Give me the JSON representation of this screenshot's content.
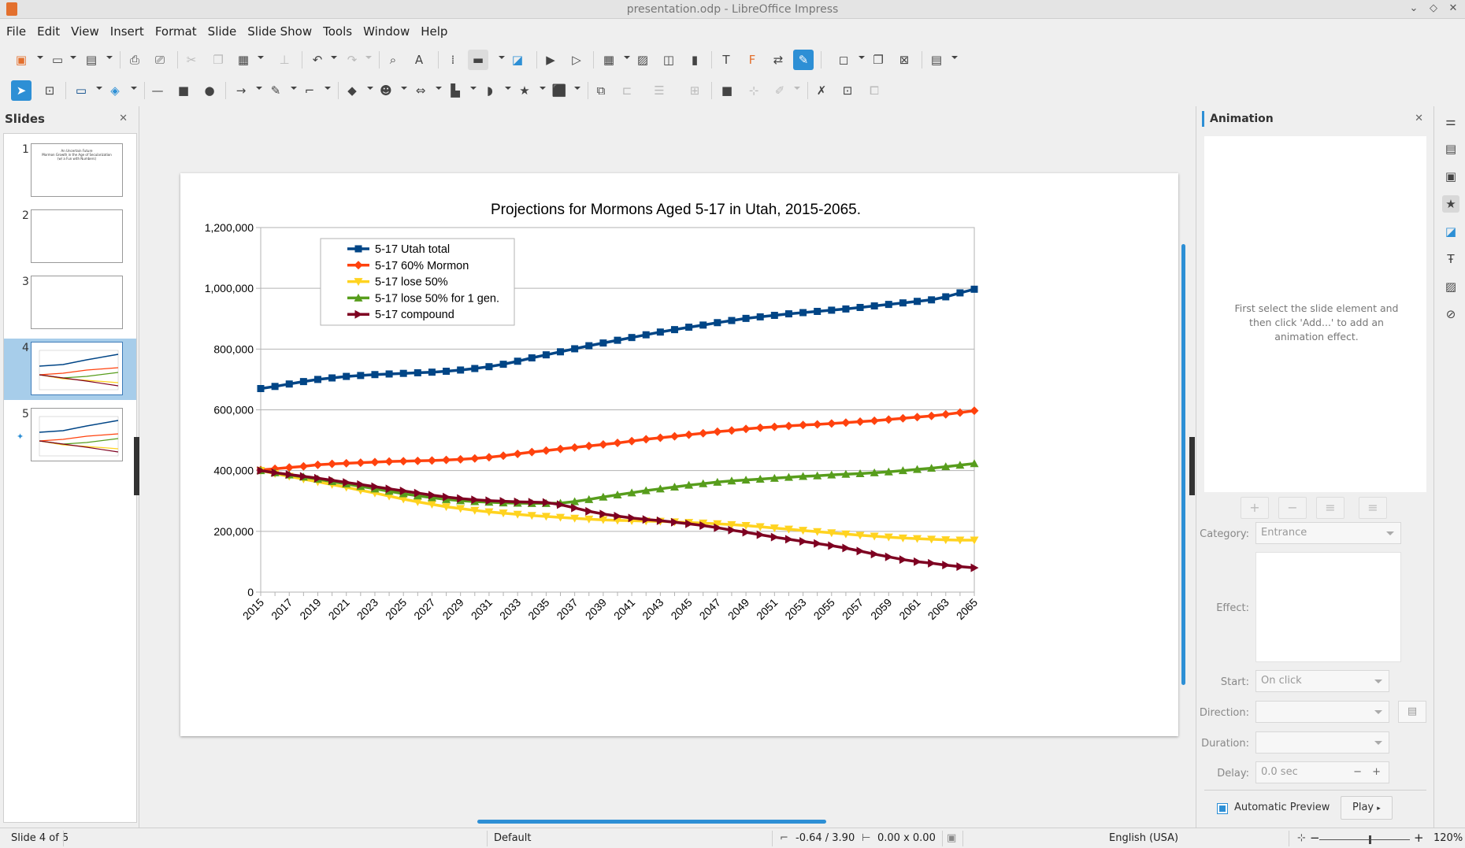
{
  "window": {
    "title": "presentation.odp - LibreOffice Impress"
  },
  "menu": [
    "File",
    "Edit",
    "View",
    "Insert",
    "Format",
    "Slide",
    "Slide Show",
    "Tools",
    "Window",
    "Help"
  ],
  "slides_panel": {
    "title": "Slides",
    "thumbs": [
      {
        "num": "1",
        "lines": [
          "An Uncertain Future",
          "Mormon Growth in the Age of Secularization",
          "(w/ a Fun with Numbers)"
        ]
      },
      {
        "num": "2"
      },
      {
        "num": "3"
      },
      {
        "num": "4"
      },
      {
        "num": "5"
      }
    ]
  },
  "animation_panel": {
    "title": "Animation",
    "hint": "First select the slide element and then click 'Add...' to add an animation effect.",
    "category_label": "Category:",
    "category_value": "Entrance",
    "effect_label": "Effect:",
    "start_label": "Start:",
    "start_value": "On click",
    "direction_label": "Direction:",
    "duration_label": "Duration:",
    "delay_label": "Delay:",
    "delay_value": "0.0 sec",
    "auto_preview_label": "Automatic Preview",
    "play_label": "Play"
  },
  "status": {
    "slide": "Slide 4 of 5",
    "layout": "Default",
    "position": "-0.64 / 3.90",
    "size": "0.00 x 0.00",
    "language": "English (USA)",
    "zoom": "120%"
  },
  "chart_data": {
    "type": "line",
    "title": "Projections for Mormons Aged 5-17 in Utah, 2015-2065.",
    "x": [
      2015,
      2016,
      2017,
      2018,
      2019,
      2020,
      2021,
      2022,
      2023,
      2024,
      2025,
      2026,
      2027,
      2028,
      2029,
      2030,
      2031,
      2032,
      2033,
      2034,
      2035,
      2036,
      2037,
      2038,
      2039,
      2040,
      2041,
      2042,
      2043,
      2044,
      2045,
      2046,
      2047,
      2048,
      2049,
      2050,
      2051,
      2052,
      2053,
      2054,
      2055,
      2056,
      2057,
      2058,
      2059,
      2060,
      2061,
      2062,
      2063,
      2064,
      2065
    ],
    "xticks": [
      "2015",
      "2017",
      "2019",
      "2021",
      "2023",
      "2025",
      "2027",
      "2029",
      "2031",
      "2033",
      "2035",
      "2037",
      "2039",
      "2041",
      "2043",
      "2045",
      "2047",
      "2049",
      "2051",
      "2053",
      "2055",
      "2057",
      "2059",
      "2061",
      "2063",
      "2065"
    ],
    "yticks": [
      "0",
      "200,000",
      "400,000",
      "600,000",
      "800,000",
      "1,000,000",
      "1,200,000"
    ],
    "ylim": [
      0,
      1200000
    ],
    "grid": true,
    "legend_position": "top-left",
    "series": [
      {
        "name": "5-17 Utah total",
        "color": "#004586",
        "marker": "square",
        "values": [
          670000,
          677000,
          685000,
          693000,
          700000,
          705000,
          710000,
          713000,
          716000,
          718000,
          720000,
          722000,
          724000,
          727000,
          731000,
          736000,
          742000,
          750000,
          760000,
          771000,
          781000,
          791000,
          801000,
          811000,
          820000,
          829000,
          838000,
          847000,
          856000,
          864000,
          872000,
          879000,
          887000,
          894000,
          901000,
          906000,
          911000,
          916000,
          920000,
          924000,
          928000,
          932000,
          937000,
          942000,
          947000,
          952000,
          957000,
          962000,
          972000,
          985000,
          997000
        ]
      },
      {
        "name": "5-17 60% Mormon",
        "color": "#ff420e",
        "marker": "diamond",
        "values": [
          402000,
          406000,
          410000,
          414000,
          419000,
          422000,
          424000,
          426000,
          428000,
          430000,
          431000,
          432000,
          433000,
          435000,
          437000,
          440000,
          444000,
          449000,
          455000,
          461000,
          466000,
          471000,
          476000,
          481000,
          486000,
          491000,
          497000,
          503000,
          508000,
          513000,
          518000,
          523000,
          528000,
          532000,
          537000,
          541000,
          544000,
          547000,
          550000,
          552000,
          555000,
          558000,
          561000,
          564000,
          568000,
          572000,
          576000,
          580000,
          585000,
          591000,
          597000
        ]
      },
      {
        "name": "5-17 lose 50%",
        "color": "#ffd320",
        "marker": "triangle-down",
        "values": [
          400000,
          390000,
          381000,
          372000,
          363000,
          354000,
          345000,
          335000,
          326000,
          316000,
          306000,
          297000,
          289000,
          281000,
          275000,
          269000,
          264000,
          260000,
          256000,
          252000,
          249000,
          246000,
          243000,
          240000,
          238000,
          236000,
          235000,
          234000,
          233000,
          231000,
          229000,
          227000,
          225000,
          222000,
          219000,
          215000,
          211000,
          207000,
          203000,
          199000,
          195000,
          191000,
          187000,
          184000,
          181000,
          178000,
          176000,
          174000,
          172000,
          171000,
          171000
        ]
      },
      {
        "name": "5-17 lose 50% for 1 gen.",
        "color": "#579d1c",
        "marker": "triangle-up",
        "values": [
          400000,
          393000,
          386000,
          379000,
          372000,
          364000,
          356000,
          348000,
          340000,
          332000,
          324000,
          317000,
          311000,
          305000,
          301000,
          298000,
          296000,
          294000,
          293000,
          292000,
          292000,
          293000,
          298000,
          305000,
          313000,
          320000,
          327000,
          334000,
          340000,
          346000,
          352000,
          357000,
          362000,
          366000,
          369000,
          372000,
          375000,
          378000,
          381000,
          383000,
          386000,
          388000,
          390000,
          393000,
          396000,
          400000,
          404000,
          408000,
          413000,
          418000,
          423000
        ]
      },
      {
        "name": "5-17 compound",
        "color": "#7e0021",
        "marker": "triangle-right",
        "values": [
          400000,
          393000,
          387000,
          381000,
          375000,
          368000,
          361000,
          354000,
          347000,
          340000,
          333000,
          326000,
          319000,
          313000,
          308000,
          304000,
          301000,
          299000,
          297000,
          296000,
          295000,
          288000,
          277000,
          266000,
          257000,
          250000,
          244000,
          239000,
          235000,
          230000,
          225000,
          219000,
          212000,
          204000,
          197000,
          189000,
          181000,
          174000,
          167000,
          160000,
          153000,
          145000,
          135000,
          125000,
          116000,
          107000,
          100000,
          95000,
          89000,
          84000,
          80000
        ]
      }
    ]
  }
}
